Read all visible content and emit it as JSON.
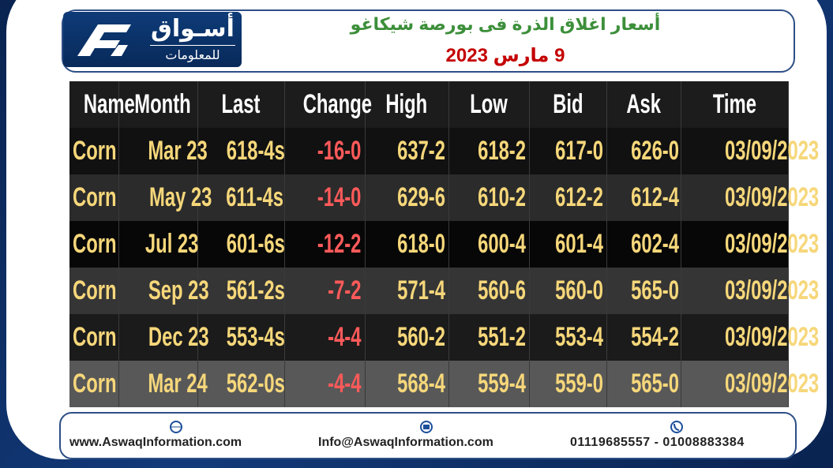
{
  "header": {
    "logo_name": "أسـواق",
    "logo_sub": "للمعلومات",
    "title": "أسعار اغلاق الذرة فى بورصة شيكاغو",
    "date": "9 مارس 2023"
  },
  "table": {
    "columns": [
      "Name",
      "Month",
      "Last",
      "Change",
      "High",
      "Low",
      "Bid",
      "Ask",
      "Time"
    ],
    "rows": [
      [
        "Corn",
        "Mar 23",
        "618-4s",
        "-16-0",
        "637-2",
        "618-2",
        "617-0",
        "626-0",
        "03/09/2023"
      ],
      [
        "Corn",
        "May 23",
        "611-4s",
        "-14-0",
        "629-6",
        "610-2",
        "612-2",
        "612-4",
        "03/09/2023"
      ],
      [
        "Corn",
        "Jul 23",
        "601-6s",
        "-12-2",
        "618-0",
        "600-4",
        "601-4",
        "602-4",
        "03/09/2023"
      ],
      [
        "Corn",
        "Sep 23",
        "561-2s",
        "-7-2",
        "571-4",
        "560-6",
        "560-0",
        "565-0",
        "03/09/2023"
      ],
      [
        "Corn",
        "Dec 23",
        "553-4s",
        "-4-4",
        "560-2",
        "551-2",
        "553-4",
        "554-2",
        "03/09/2023"
      ],
      [
        "Corn",
        "Mar 24",
        "562-0s",
        "-4-4",
        "568-4",
        "559-4",
        "559-0",
        "565-0",
        "03/09/2023"
      ]
    ]
  },
  "footer": {
    "website": "www.AswaqInformation.com",
    "email": "Info@AswaqInformation.com",
    "phones": "01119685557 - 01008883384"
  }
}
